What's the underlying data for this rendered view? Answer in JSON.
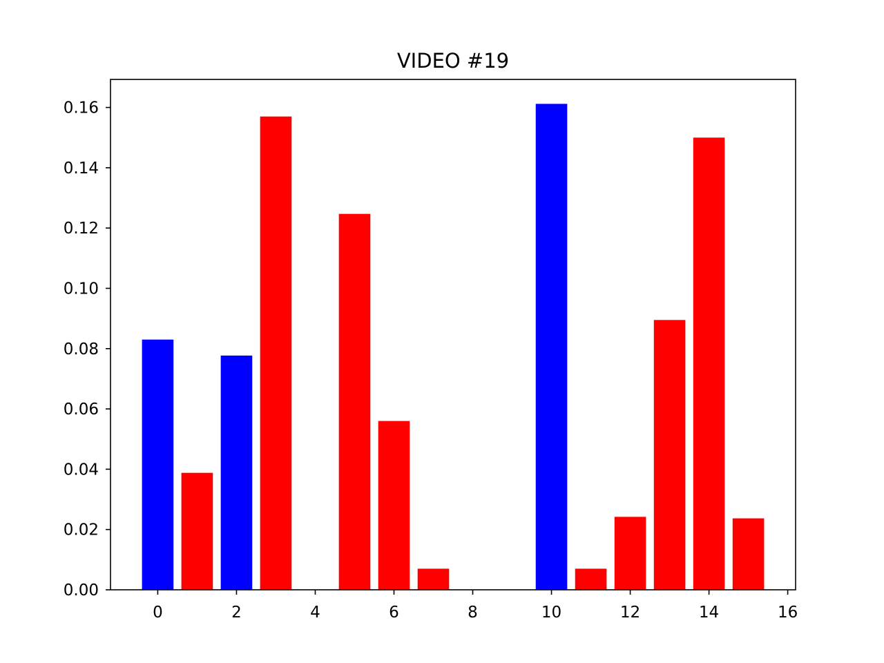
{
  "chart_data": {
    "type": "bar",
    "title": "VIDEO #19",
    "xlabel": "",
    "ylabel": "",
    "x": [
      0,
      1,
      2,
      3,
      4,
      5,
      6,
      7,
      8,
      9,
      10,
      11,
      12,
      13,
      14,
      15
    ],
    "values": [
      0.083,
      0.0388,
      0.0777,
      0.157,
      0,
      0.1247,
      0.056,
      0.007,
      0,
      0,
      0.1612,
      0.007,
      0.0242,
      0.0895,
      0.15,
      0.0237
    ],
    "bar_colors": [
      "#0000ff",
      "#ff0000",
      "#0000ff",
      "#ff0000",
      "#ff0000",
      "#ff0000",
      "#ff0000",
      "#ff0000",
      "#ff0000",
      "#ff0000",
      "#0000ff",
      "#ff0000",
      "#ff0000",
      "#ff0000",
      "#ff0000",
      "#ff0000"
    ],
    "xlim": [
      -1.2,
      16.2
    ],
    "ylim": [
      0,
      0.1693
    ],
    "xticks": [
      0,
      2,
      4,
      6,
      8,
      10,
      12,
      14,
      16
    ],
    "xtick_labels": [
      "0",
      "2",
      "4",
      "6",
      "8",
      "10",
      "12",
      "14",
      "16"
    ],
    "yticks": [
      0,
      0.02,
      0.04,
      0.06,
      0.08,
      0.1,
      0.12,
      0.14,
      0.16
    ],
    "ytick_labels": [
      "0.00",
      "0.02",
      "0.04",
      "0.06",
      "0.08",
      "0.10",
      "0.12",
      "0.14",
      "0.16"
    ],
    "grid": false,
    "legend": "none"
  }
}
